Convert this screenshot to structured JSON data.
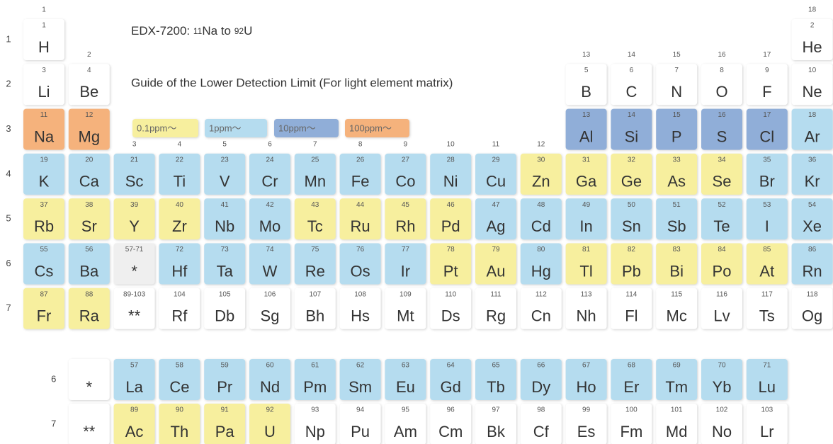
{
  "title": [
    {
      "text": "EDX-7200: "
    },
    {
      "text": "11",
      "small": true
    },
    {
      "text": "Na to "
    },
    {
      "text": "92",
      "small": true
    },
    {
      "text": "U"
    }
  ],
  "subtitle": "Guide of the Lower Detection Limit (For light element matrix)",
  "legend": [
    {
      "label": "0.1ppm～",
      "color": "#f7ef9e"
    },
    {
      "label": "1ppm～",
      "color": "#b5dcef"
    },
    {
      "label": "10ppm～",
      "color": "#90aed8"
    },
    {
      "label": "100ppm～",
      "color": "#f5b27c"
    }
  ],
  "groups": [
    "1",
    "2",
    "3",
    "4",
    "5",
    "6",
    "7",
    "8",
    "9",
    "10",
    "11",
    "12",
    "13",
    "14",
    "15",
    "16",
    "17",
    "18"
  ],
  "periods": [
    {
      "label": "1",
      "cells": [
        {
          "n": "1",
          "s": "H",
          "c": "#ffffff"
        },
        null,
        null,
        null,
        null,
        null,
        null,
        null,
        null,
        null,
        null,
        null,
        null,
        null,
        null,
        null,
        null,
        {
          "n": "2",
          "s": "He",
          "c": "#ffffff"
        }
      ]
    },
    {
      "label": "2",
      "cells": [
        {
          "n": "3",
          "s": "Li",
          "c": "#ffffff"
        },
        {
          "n": "4",
          "s": "Be",
          "c": "#ffffff"
        },
        null,
        null,
        null,
        null,
        null,
        null,
        null,
        null,
        null,
        null,
        {
          "n": "5",
          "s": "B",
          "c": "#ffffff"
        },
        {
          "n": "6",
          "s": "C",
          "c": "#ffffff"
        },
        {
          "n": "7",
          "s": "N",
          "c": "#ffffff"
        },
        {
          "n": "8",
          "s": "O",
          "c": "#ffffff"
        },
        {
          "n": "9",
          "s": "F",
          "c": "#ffffff"
        },
        {
          "n": "10",
          "s": "Ne",
          "c": "#ffffff"
        }
      ]
    },
    {
      "label": "3",
      "cells": [
        {
          "n": "11",
          "s": "Na",
          "c": "#f5b27c"
        },
        {
          "n": "12",
          "s": "Mg",
          "c": "#f5b27c"
        },
        null,
        null,
        null,
        null,
        null,
        null,
        null,
        null,
        null,
        null,
        {
          "n": "13",
          "s": "Al",
          "c": "#90aed8"
        },
        {
          "n": "14",
          "s": "Si",
          "c": "#90aed8"
        },
        {
          "n": "15",
          "s": "P",
          "c": "#90aed8"
        },
        {
          "n": "16",
          "s": "S",
          "c": "#90aed8"
        },
        {
          "n": "17",
          "s": "Cl",
          "c": "#90aed8"
        },
        {
          "n": "18",
          "s": "Ar",
          "c": "#b5dcef"
        }
      ]
    },
    {
      "label": "4",
      "cells": [
        {
          "n": "19",
          "s": "K",
          "c": "#b5dcef"
        },
        {
          "n": "20",
          "s": "Ca",
          "c": "#b5dcef"
        },
        {
          "n": "21",
          "s": "Sc",
          "c": "#b5dcef"
        },
        {
          "n": "22",
          "s": "Ti",
          "c": "#b5dcef"
        },
        {
          "n": "23",
          "s": "V",
          "c": "#b5dcef"
        },
        {
          "n": "24",
          "s": "Cr",
          "c": "#b5dcef"
        },
        {
          "n": "25",
          "s": "Mn",
          "c": "#b5dcef"
        },
        {
          "n": "26",
          "s": "Fe",
          "c": "#b5dcef"
        },
        {
          "n": "27",
          "s": "Co",
          "c": "#b5dcef"
        },
        {
          "n": "28",
          "s": "Ni",
          "c": "#b5dcef"
        },
        {
          "n": "29",
          "s": "Cu",
          "c": "#b5dcef"
        },
        {
          "n": "30",
          "s": "Zn",
          "c": "#f7ef9e"
        },
        {
          "n": "31",
          "s": "Ga",
          "c": "#f7ef9e"
        },
        {
          "n": "32",
          "s": "Ge",
          "c": "#f7ef9e"
        },
        {
          "n": "33",
          "s": "As",
          "c": "#f7ef9e"
        },
        {
          "n": "34",
          "s": "Se",
          "c": "#f7ef9e"
        },
        {
          "n": "35",
          "s": "Br",
          "c": "#b5dcef"
        },
        {
          "n": "36",
          "s": "Kr",
          "c": "#b5dcef"
        }
      ]
    },
    {
      "label": "5",
      "cells": [
        {
          "n": "37",
          "s": "Rb",
          "c": "#f7ef9e"
        },
        {
          "n": "38",
          "s": "Sr",
          "c": "#f7ef9e"
        },
        {
          "n": "39",
          "s": "Y",
          "c": "#f7ef9e"
        },
        {
          "n": "40",
          "s": "Zr",
          "c": "#f7ef9e"
        },
        {
          "n": "41",
          "s": "Nb",
          "c": "#b5dcef"
        },
        {
          "n": "42",
          "s": "Mo",
          "c": "#b5dcef"
        },
        {
          "n": "43",
          "s": "Tc",
          "c": "#f7ef9e"
        },
        {
          "n": "44",
          "s": "Ru",
          "c": "#f7ef9e"
        },
        {
          "n": "45",
          "s": "Rh",
          "c": "#f7ef9e"
        },
        {
          "n": "46",
          "s": "Pd",
          "c": "#f7ef9e"
        },
        {
          "n": "47",
          "s": "Ag",
          "c": "#b5dcef"
        },
        {
          "n": "48",
          "s": "Cd",
          "c": "#b5dcef"
        },
        {
          "n": "49",
          "s": "In",
          "c": "#b5dcef"
        },
        {
          "n": "50",
          "s": "Sn",
          "c": "#b5dcef"
        },
        {
          "n": "51",
          "s": "Sb",
          "c": "#b5dcef"
        },
        {
          "n": "52",
          "s": "Te",
          "c": "#b5dcef"
        },
        {
          "n": "53",
          "s": "I",
          "c": "#b5dcef"
        },
        {
          "n": "54",
          "s": "Xe",
          "c": "#b5dcef"
        }
      ]
    },
    {
      "label": "6",
      "cells": [
        {
          "n": "55",
          "s": "Cs",
          "c": "#b5dcef"
        },
        {
          "n": "56",
          "s": "Ba",
          "c": "#b5dcef"
        },
        {
          "n": "57-71",
          "s": "*",
          "c": "#efefef"
        },
        {
          "n": "72",
          "s": "Hf",
          "c": "#b5dcef"
        },
        {
          "n": "73",
          "s": "Ta",
          "c": "#b5dcef"
        },
        {
          "n": "74",
          "s": "W",
          "c": "#b5dcef"
        },
        {
          "n": "75",
          "s": "Re",
          "c": "#b5dcef"
        },
        {
          "n": "76",
          "s": "Os",
          "c": "#b5dcef"
        },
        {
          "n": "77",
          "s": "Ir",
          "c": "#b5dcef"
        },
        {
          "n": "78",
          "s": "Pt",
          "c": "#f7ef9e"
        },
        {
          "n": "79",
          "s": "Au",
          "c": "#f7ef9e"
        },
        {
          "n": "80",
          "s": "Hg",
          "c": "#b5dcef"
        },
        {
          "n": "81",
          "s": "Tl",
          "c": "#f7ef9e"
        },
        {
          "n": "82",
          "s": "Pb",
          "c": "#f7ef9e"
        },
        {
          "n": "83",
          "s": "Bi",
          "c": "#f7ef9e"
        },
        {
          "n": "84",
          "s": "Po",
          "c": "#f7ef9e"
        },
        {
          "n": "85",
          "s": "At",
          "c": "#f7ef9e"
        },
        {
          "n": "86",
          "s": "Rn",
          "c": "#b5dcef"
        }
      ]
    },
    {
      "label": "7",
      "cells": [
        {
          "n": "87",
          "s": "Fr",
          "c": "#f7ef9e"
        },
        {
          "n": "88",
          "s": "Ra",
          "c": "#f7ef9e"
        },
        {
          "n": "89-103",
          "s": "**",
          "c": "#ffffff"
        },
        {
          "n": "104",
          "s": "Rf",
          "c": "#ffffff"
        },
        {
          "n": "105",
          "s": "Db",
          "c": "#ffffff"
        },
        {
          "n": "106",
          "s": "Sg",
          "c": "#ffffff"
        },
        {
          "n": "107",
          "s": "Bh",
          "c": "#ffffff"
        },
        {
          "n": "108",
          "s": "Hs",
          "c": "#ffffff"
        },
        {
          "n": "109",
          "s": "Mt",
          "c": "#ffffff"
        },
        {
          "n": "110",
          "s": "Ds",
          "c": "#ffffff"
        },
        {
          "n": "111",
          "s": "Rg",
          "c": "#ffffff"
        },
        {
          "n": "112",
          "s": "Cn",
          "c": "#ffffff"
        },
        {
          "n": "113",
          "s": "Nh",
          "c": "#ffffff"
        },
        {
          "n": "114",
          "s": "Fl",
          "c": "#ffffff"
        },
        {
          "n": "115",
          "s": "Mc",
          "c": "#ffffff"
        },
        {
          "n": "116",
          "s": "Lv",
          "c": "#ffffff"
        },
        {
          "n": "117",
          "s": "Ts",
          "c": "#ffffff"
        },
        {
          "n": "118",
          "s": "Og",
          "c": "#ffffff"
        }
      ]
    }
  ],
  "series_rows": [
    {
      "label": "6",
      "cells": [
        null,
        {
          "s": "*",
          "c": "#ffffff"
        },
        {
          "n": "57",
          "s": "La",
          "c": "#b5dcef"
        },
        {
          "n": "58",
          "s": "Ce",
          "c": "#b5dcef"
        },
        {
          "n": "59",
          "s": "Pr",
          "c": "#b5dcef"
        },
        {
          "n": "60",
          "s": "Nd",
          "c": "#b5dcef"
        },
        {
          "n": "61",
          "s": "Pm",
          "c": "#b5dcef"
        },
        {
          "n": "62",
          "s": "Sm",
          "c": "#b5dcef"
        },
        {
          "n": "63",
          "s": "Eu",
          "c": "#b5dcef"
        },
        {
          "n": "64",
          "s": "Gd",
          "c": "#b5dcef"
        },
        {
          "n": "65",
          "s": "Tb",
          "c": "#b5dcef"
        },
        {
          "n": "66",
          "s": "Dy",
          "c": "#b5dcef"
        },
        {
          "n": "67",
          "s": "Ho",
          "c": "#b5dcef"
        },
        {
          "n": "68",
          "s": "Er",
          "c": "#b5dcef"
        },
        {
          "n": "69",
          "s": "Tm",
          "c": "#b5dcef"
        },
        {
          "n": "70",
          "s": "Yb",
          "c": "#b5dcef"
        },
        {
          "n": "71",
          "s": "Lu",
          "c": "#b5dcef"
        }
      ]
    },
    {
      "label": "7",
      "cells": [
        null,
        {
          "s": "**",
          "c": "#ffffff"
        },
        {
          "n": "89",
          "s": "Ac",
          "c": "#f7ef9e"
        },
        {
          "n": "90",
          "s": "Th",
          "c": "#f7ef9e"
        },
        {
          "n": "91",
          "s": "Pa",
          "c": "#f7ef9e"
        },
        {
          "n": "92",
          "s": "U",
          "c": "#f7ef9e"
        },
        {
          "n": "93",
          "s": "Np",
          "c": "#ffffff"
        },
        {
          "n": "94",
          "s": "Pu",
          "c": "#ffffff"
        },
        {
          "n": "95",
          "s": "Am",
          "c": "#ffffff"
        },
        {
          "n": "96",
          "s": "Cm",
          "c": "#ffffff"
        },
        {
          "n": "97",
          "s": "Bk",
          "c": "#ffffff"
        },
        {
          "n": "98",
          "s": "Cf",
          "c": "#ffffff"
        },
        {
          "n": "99",
          "s": "Es",
          "c": "#ffffff"
        },
        {
          "n": "100",
          "s": "Fm",
          "c": "#ffffff"
        },
        {
          "n": "101",
          "s": "Md",
          "c": "#ffffff"
        },
        {
          "n": "102",
          "s": "No",
          "c": "#ffffff"
        },
        {
          "n": "103",
          "s": "Lr",
          "c": "#ffffff"
        }
      ]
    }
  ]
}
